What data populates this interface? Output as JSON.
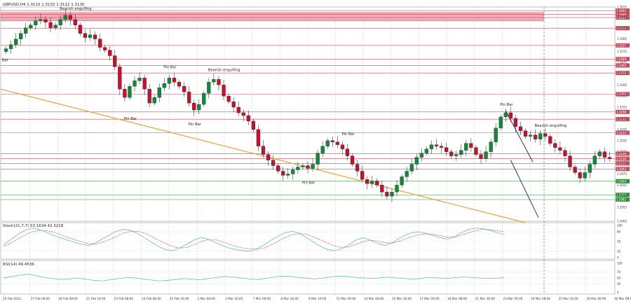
{
  "header": {
    "main_title": "GBPUSD,H4  1.3115 1.3132 1.3112 1.3130",
    "stoch_title": "Stoch(21,7,7) 53.1634 42.3218",
    "rsi_title": "RSI(14) 49.4536"
  },
  "colors": {
    "bull": "#0e8a3a",
    "bear": "#c8102e",
    "resistance_zone": "#f7aab8",
    "level_line": "#c74b5d",
    "support_line": "#2f8f3a",
    "trend_line": "#e8a33a",
    "channel": "#1a1a7a",
    "osc_main": "#4cb6c9",
    "osc_signal": "#d23a3a"
  },
  "chart_data": {
    "type": "candlestick",
    "symbol": "GBPUSD",
    "timeframe": "H4",
    "ylim": [
      1.2905,
      1.3675
    ],
    "price_ticks": [
      "1.3675",
      "1.3640",
      "1.3599",
      "1.3560",
      "1.3515",
      "1.3475",
      "1.3435",
      "1.3395",
      "1.3355",
      "1.3315",
      "1.3275",
      "1.3235",
      "1.3195",
      "1.3155",
      "1.3115",
      "1.3075",
      "1.3035",
      "1.2995",
      "1.2955",
      "1.2905"
    ],
    "time_ticks": [
      "15 Feb 2022",
      "17 Feb 08:00",
      "18 Feb 08:00",
      "21 Feb 16:00",
      "23 Feb 08:00",
      "24 Feb 08:00",
      "25 Feb 16:00",
      "2 Mar 08:00",
      "3 Mar 16:00",
      "7 Mar 00:00",
      "8 Mar 16:00",
      "9 Mar 16:00",
      "11 Mar 00:00",
      "14 Mar 08:00",
      "15 Mar 16:00",
      "17 Mar 00:00",
      "18 Mar 08:00",
      "21 Mar 16:00",
      "23 Mar 00:00",
      "24 Mar 08:00",
      "25 Mar 16:00",
      "29 Mar 00:00",
      "30 Mar 08:00"
    ],
    "resistance_zone": [
      1.3625,
      1.3655
    ],
    "levels": [
      {
        "price": 1.3662,
        "label": "1.3662"
      },
      {
        "price": 1.3648,
        "label": "1.3648"
      },
      {
        "price": 1.3637,
        "label": "1.3637"
      },
      {
        "price": 1.3599,
        "label": "1.3599"
      },
      {
        "price": 1.3537,
        "label": "1.3537"
      },
      {
        "price": 1.3488,
        "label": "1.3488"
      },
      {
        "price": 1.3465,
        "label": "1.3465"
      },
      {
        "price": 1.3438,
        "label": "1.3438"
      },
      {
        "price": 1.3362,
        "label": "1.3362"
      },
      {
        "price": 1.3298,
        "label": "1.3298"
      },
      {
        "price": 1.3272,
        "label": "1.3272"
      },
      {
        "price": 1.3223,
        "label": "1.3223"
      },
      {
        "price": 1.3148,
        "label": "1.3148"
      },
      {
        "price": 1.313,
        "label": "1.3130"
      },
      {
        "price": 1.3113,
        "label": "1.3113"
      },
      {
        "price": 1.3093,
        "label": "1.3093"
      }
    ],
    "supports": [
      {
        "price": 1.3049,
        "label": "1.3049"
      },
      {
        "price": 1.3,
        "label": "1.3000"
      },
      {
        "price": 1.2983,
        "label": "1.2983"
      }
    ],
    "closes": [
      1.3525,
      1.354,
      1.356,
      1.358,
      1.36,
      1.361,
      1.3625,
      1.363,
      1.362,
      1.36,
      1.361,
      1.363,
      1.3645,
      1.363,
      1.361,
      1.358,
      1.3565,
      1.3575,
      1.356,
      1.353,
      1.352,
      1.35,
      1.346,
      1.338,
      1.335,
      1.339,
      1.341,
      1.342,
      1.338,
      1.333,
      1.335,
      1.3385,
      1.34,
      1.342,
      1.3405,
      1.339,
      1.337,
      1.333,
      1.3305,
      1.3325,
      1.3365,
      1.3405,
      1.3415,
      1.3395,
      1.3355,
      1.3335,
      1.3315,
      1.3295,
      1.3285,
      1.3265,
      1.3235,
      1.3175,
      1.3145,
      1.3125,
      1.3105,
      1.3085,
      1.307,
      1.3075,
      1.309,
      1.31,
      1.3105,
      1.3095,
      1.311,
      1.315,
      1.3175,
      1.3195,
      1.319,
      1.318,
      1.3165,
      1.314,
      1.311,
      1.3085,
      1.3055,
      1.304,
      1.305,
      1.3035,
      1.301,
      1.2995,
      1.301,
      1.3035,
      1.3065,
      1.3085,
      1.311,
      1.3135,
      1.315,
      1.3165,
      1.318,
      1.3175,
      1.317,
      1.3155,
      1.314,
      1.3145,
      1.316,
      1.3185,
      1.317,
      1.3145,
      1.313,
      1.3155,
      1.319,
      1.324,
      1.328,
      1.3295,
      1.3275,
      1.3245,
      1.323,
      1.321,
      1.3215,
      1.32,
      1.322,
      1.321,
      1.3185,
      1.317,
      1.316,
      1.314,
      1.31,
      1.308,
      1.306,
      1.308,
      1.311,
      1.314,
      1.3155,
      1.3135,
      1.313
    ],
    "annotations": [
      {
        "text": "Bearish engulfing",
        "i": 12,
        "price": 1.366,
        "pos": "above"
      },
      {
        "text": "Pin Bar",
        "i": 25,
        "price": 1.329,
        "pos": "below"
      },
      {
        "text": "Pin Bar",
        "i": 33,
        "price": 1.345,
        "pos": "above"
      },
      {
        "text": "Bearish engulfing",
        "i": 42,
        "price": 1.344,
        "pos": "above"
      },
      {
        "text": "Pin Bar",
        "i": 38,
        "price": 1.327,
        "pos": "below"
      },
      {
        "text": "Pin Bar",
        "i": 61,
        "price": 1.306,
        "pos": "below"
      },
      {
        "text": "Pin Bar",
        "i": 69,
        "price": 1.321,
        "pos": "above"
      },
      {
        "text": "Pin Bar",
        "i": 101,
        "price": 1.3315,
        "pos": "above"
      },
      {
        "text": "Bearish engulfing",
        "i": 108,
        "price": 1.324,
        "pos": "above"
      },
      {
        "text": "Bar",
        "i": 0,
        "price": 1.3475,
        "pos": "left"
      }
    ],
    "stoch": {
      "ylim": [
        0,
        100
      ],
      "ticks": [
        "100",
        "80",
        "50",
        "20",
        "0"
      ],
      "main": [
        40,
        55,
        72,
        85,
        92,
        88,
        80,
        70,
        62,
        55,
        48,
        42,
        38,
        45,
        58,
        70,
        82,
        88,
        85,
        75,
        62,
        48,
        35,
        25,
        22,
        30,
        42,
        55,
        62,
        58,
        48,
        38,
        30,
        25,
        22,
        20,
        28,
        40,
        55,
        68,
        78,
        82,
        75,
        62,
        48,
        35,
        25,
        22,
        28,
        40,
        55,
        62,
        55,
        45,
        38,
        45,
        58,
        70,
        78,
        80,
        75,
        68,
        62,
        58,
        65,
        78,
        88,
        92,
        90,
        85,
        78,
        72
      ],
      "signal": [
        35,
        45,
        58,
        70,
        80,
        85,
        84,
        80,
        72,
        64,
        56,
        50,
        44,
        42,
        48,
        56,
        66,
        76,
        82,
        82,
        76,
        66,
        54,
        44,
        35,
        30,
        32,
        40,
        50,
        56,
        56,
        50,
        42,
        35,
        30,
        27,
        26,
        30,
        40,
        52,
        64,
        72,
        75,
        72,
        64,
        55,
        45,
        36,
        32,
        34,
        42,
        50,
        54,
        52,
        47,
        45,
        50,
        58,
        66,
        72,
        74,
        72,
        68,
        64,
        64,
        70,
        78,
        84,
        88,
        87,
        84,
        80
      ]
    },
    "rsi": {
      "ylim": [
        0,
        100
      ],
      "ticks": [
        "100",
        "70",
        "50",
        "30",
        "0"
      ],
      "main": [
        50,
        55,
        60,
        63,
        58,
        52,
        48,
        45,
        47,
        50,
        46,
        42,
        40,
        44,
        48,
        52,
        50,
        47,
        43,
        40,
        42,
        45,
        48,
        46,
        44,
        48,
        52,
        55,
        53,
        50,
        47,
        45,
        49,
        53,
        57,
        55,
        52,
        49,
        47,
        50,
        54,
        57,
        55,
        52,
        50,
        48,
        51,
        53,
        50,
        48,
        46,
        49,
        52,
        50,
        48,
        51,
        54,
        52,
        50,
        48,
        49,
        51
      ]
    }
  }
}
